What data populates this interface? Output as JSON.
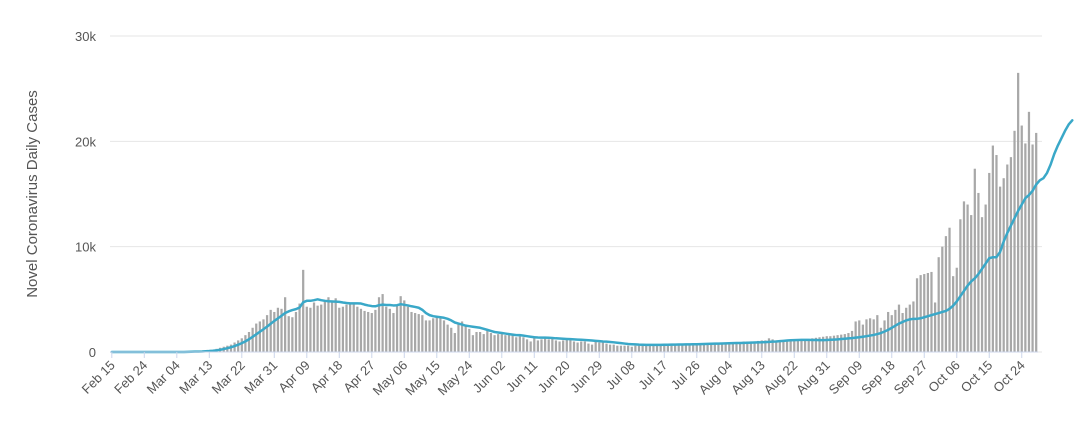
{
  "chart_data": {
    "type": "bar",
    "ylabel": "Novel Coronavirus Daily Cases",
    "ylim": [
      0,
      30000
    ],
    "y_ticks": [
      0,
      10000,
      20000,
      30000
    ],
    "y_tick_labels": [
      "0",
      "10k",
      "20k",
      "30k"
    ],
    "x_start_date": "Feb 15",
    "x_tick_labels": [
      "Feb 15",
      "Feb 24",
      "Mar 04",
      "Mar 13",
      "Mar 22",
      "Mar 31",
      "Apr 09",
      "Apr 18",
      "Apr 27",
      "May 06",
      "May 15",
      "May 24",
      "Jun 02",
      "Jun 11",
      "Jun 20",
      "Jun 29",
      "Jul 08",
      "Jul 17",
      "Jul 26",
      "Aug 04",
      "Aug 13",
      "Aug 22",
      "Aug 31",
      "Sep 09",
      "Sep 18",
      "Sep 27",
      "Oct 06",
      "Oct 15",
      "Oct 24"
    ],
    "grid": true,
    "legend": "none",
    "series": [
      {
        "kind": "bar",
        "color": "#a8a8a8",
        "values": [
          0,
          0,
          0,
          0,
          0,
          0,
          0,
          0,
          0,
          0,
          0,
          0,
          0,
          0,
          0,
          0,
          0,
          0,
          0,
          0,
          10,
          20,
          30,
          50,
          60,
          80,
          100,
          150,
          200,
          300,
          400,
          500,
          600,
          700,
          900,
          1100,
          1300,
          1600,
          1900,
          2300,
          2700,
          2900,
          3100,
          3500,
          4000,
          3800,
          4200,
          4100,
          5200,
          3400,
          3300,
          3800,
          4600,
          7800,
          4300,
          4200,
          4700,
          4400,
          4500,
          4900,
          5200,
          4900,
          5100,
          4200,
          4300,
          4500,
          4700,
          4600,
          4300,
          4100,
          3900,
          3800,
          3700,
          4000,
          5200,
          5500,
          4300,
          4100,
          3700,
          4500,
          5300,
          4900,
          4300,
          3800,
          3700,
          3600,
          3500,
          3000,
          3000,
          3200,
          3300,
          3200,
          3000,
          2600,
          2300,
          1800,
          2700,
          2900,
          2600,
          2200,
          1600,
          1900,
          1900,
          1700,
          2000,
          1800,
          1600,
          1700,
          1700,
          1600,
          1600,
          1600,
          1400,
          1500,
          1400,
          1200,
          1000,
          1500,
          1100,
          1200,
          1300,
          1200,
          1300,
          1100,
          1000,
          1100,
          1200,
          1200,
          1000,
          900,
          1000,
          1000,
          800,
          700,
          1000,
          900,
          900,
          800,
          700,
          700,
          600,
          600,
          600,
          600,
          500,
          600,
          600,
          650,
          650,
          650,
          650,
          700,
          700,
          700,
          700,
          700,
          700,
          700,
          700,
          700,
          800,
          750,
          800,
          800,
          800,
          800,
          800,
          850,
          850,
          900,
          850,
          900,
          900,
          950,
          950,
          1000,
          1000,
          1000,
          1000,
          1050,
          1100,
          1100,
          1300,
          1200,
          1100,
          1000,
          1050,
          1100,
          1100,
          1100,
          1100,
          1150,
          1200,
          1200,
          1300,
          1350,
          1400,
          1450,
          1500,
          1500,
          1550,
          1600,
          1650,
          1700,
          1800,
          2000,
          2900,
          3000,
          2600,
          3100,
          3200,
          3100,
          3500,
          2300,
          3000,
          3800,
          3500,
          4000,
          4500,
          3700,
          4200,
          4500,
          4800,
          7000,
          7300,
          7400,
          7500,
          7600,
          4700,
          9000,
          10000,
          11000,
          11800,
          7200,
          8000,
          12600,
          14300,
          14000,
          13000,
          17400,
          15100,
          12800,
          14000,
          17000,
          19600,
          18700,
          15700,
          16500,
          17800,
          18500,
          21000,
          26500,
          21500,
          19800,
          22800,
          19700,
          20800
        ]
      },
      {
        "kind": "line",
        "name": "",
        "color": "#3aa8c8",
        "values": [
          0,
          0,
          0,
          0,
          0,
          0,
          0,
          0,
          0,
          0,
          0,
          0,
          0,
          0,
          0,
          0,
          0,
          0,
          0,
          0,
          0,
          10,
          20,
          30,
          40,
          50,
          70,
          90,
          120,
          160,
          210,
          280,
          360,
          450,
          560,
          690,
          840,
          1010,
          1210,
          1440,
          1680,
          1920,
          2160,
          2410,
          2680,
          2950,
          3190,
          3440,
          3700,
          3860,
          3980,
          4070,
          4220,
          4720,
          4860,
          4860,
          4920,
          5000,
          4920,
          4860,
          4820,
          4800,
          4780,
          4760,
          4700,
          4650,
          4620,
          4620,
          4620,
          4600,
          4500,
          4420,
          4360,
          4340,
          4440,
          4500,
          4460,
          4460,
          4420,
          4440,
          4540,
          4480,
          4420,
          4340,
          4280,
          4200,
          4000,
          3700,
          3500,
          3400,
          3350,
          3300,
          3250,
          3150,
          3000,
          2800,
          2700,
          2600,
          2500,
          2450,
          2400,
          2350,
          2300,
          2200,
          2100,
          2000,
          1900,
          1850,
          1800,
          1750,
          1700,
          1650,
          1600,
          1600,
          1550,
          1500,
          1450,
          1400,
          1380,
          1370,
          1360,
          1350,
          1330,
          1300,
          1280,
          1260,
          1240,
          1220,
          1200,
          1180,
          1160,
          1140,
          1120,
          1090,
          1060,
          1030,
          1000,
          980,
          950,
          920,
          880,
          840,
          800,
          760,
          740,
          720,
          700,
          690,
          680,
          680,
          680,
          680,
          680,
          690,
          690,
          700,
          700,
          710,
          710,
          720,
          720,
          730,
          740,
          750,
          760,
          770,
          780,
          790,
          800,
          810,
          820,
          830,
          840,
          850,
          860,
          870,
          880,
          890,
          900,
          910,
          920,
          940,
          960,
          980,
          1000,
          1030,
          1060,
          1090,
          1120,
          1130,
          1140,
          1150,
          1150,
          1150,
          1140,
          1140,
          1130,
          1130,
          1140,
          1160,
          1180,
          1200,
          1230,
          1260,
          1290,
          1320,
          1360,
          1400,
          1450,
          1500,
          1560,
          1620,
          1700,
          1800,
          1950,
          2100,
          2300,
          2500,
          2700,
          2850,
          3000,
          3100,
          3150,
          3150,
          3200,
          3300,
          3400,
          3500,
          3600,
          3700,
          3800,
          3900,
          4100,
          4400,
          4800,
          5300,
          5800,
          6300,
          6700,
          7000,
          7400,
          7900,
          8400,
          8900,
          9000,
          9000,
          9500,
          10500,
          11300,
          12000,
          12700,
          13400,
          14000,
          14600,
          14900,
          15300,
          15900,
          16300,
          16500,
          17000,
          17800,
          18800,
          19600,
          20300,
          21000,
          21600,
          22000
        ]
      }
    ]
  }
}
